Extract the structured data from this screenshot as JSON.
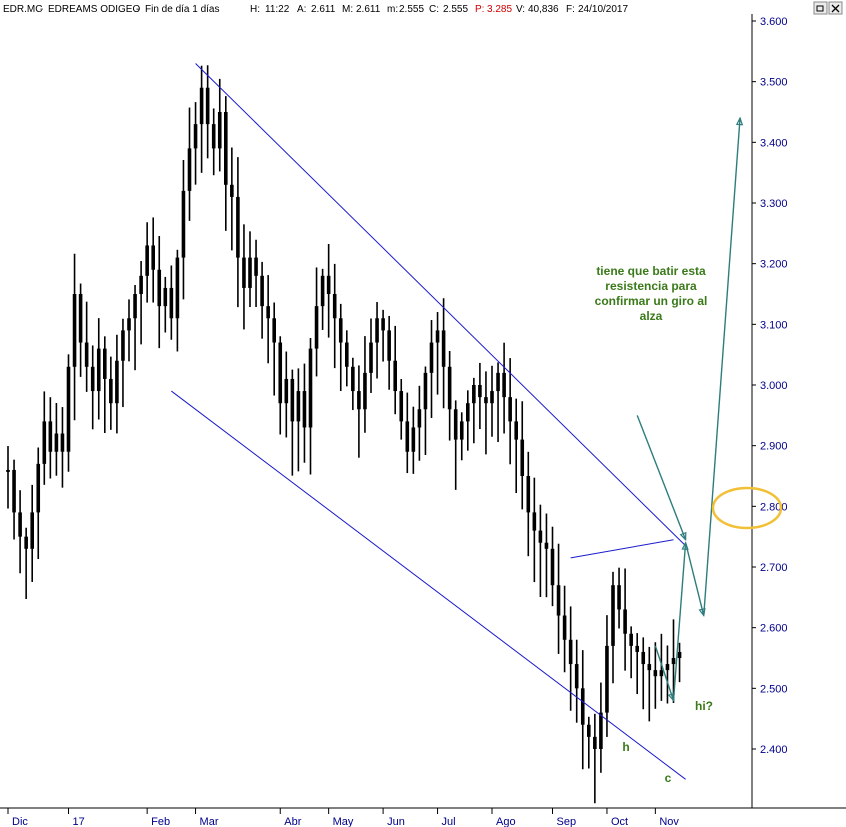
{
  "header": {
    "symbol": "EDR.MC",
    "name": "EDREAMS ODIGEO",
    "period": "Fin de día 1 días",
    "h_label": "H:",
    "h_value": "11:22",
    "a_label": "A:",
    "a_value": "2.611",
    "m_label": "M:",
    "m_value": "2.611",
    "mn_label": "m:",
    "mn_value": "2.555",
    "c_label": "C:",
    "c_value": "2.555",
    "p_label": "P:",
    "p_value": "3.285",
    "v_label": "V:",
    "v_value": "40,836",
    "f_label": "F:",
    "f_value": "24/10/2017"
  },
  "window_controls": {
    "restore": "restore-icon",
    "close": "close-icon"
  },
  "colors": {
    "price": "#000000",
    "axis_text": "#00008b",
    "channel": "#1a1acd",
    "arrows": "#2e7d7d",
    "annotation": "#3a7a1a",
    "ellipse": "#f2c037",
    "p_value": "#d00000"
  },
  "chart_data": {
    "type": "line",
    "title": "EDR.MC - EDREAMS ODIGEO",
    "ylim": [
      2.34,
      3.62
    ],
    "y_ticks": [
      "3.600",
      "3.500",
      "3.400",
      "3.300",
      "3.200",
      "3.100",
      "3.000",
      "2.900",
      "2.800",
      "2.700",
      "2.600",
      "2.500",
      "2.400"
    ],
    "y_tick_values": [
      3.6,
      3.5,
      3.4,
      3.3,
      3.2,
      3.1,
      3.0,
      2.9,
      2.8,
      2.7,
      2.6,
      2.5,
      2.4
    ],
    "x_ticks": [
      "Dic",
      "17",
      "Feb",
      "Mar",
      "Abr",
      "May",
      "Jun",
      "Jul",
      "Ago",
      "Sep",
      "Oct",
      "Nov"
    ],
    "x_tick_index": [
      0,
      10,
      23,
      31,
      45,
      53,
      62,
      71,
      80,
      90,
      99,
      107
    ],
    "n_bars": 112,
    "series": [
      {
        "values": [
          2.85,
          2.78,
          2.74,
          2.72,
          2.78,
          2.86,
          2.93,
          2.88,
          2.91,
          2.88,
          3.02,
          3.14,
          3.06,
          3.02,
          2.98,
          3.05,
          3.0,
          2.96,
          3.03,
          3.08,
          3.1,
          3.14,
          3.17,
          3.22,
          3.18,
          3.12,
          3.15,
          3.1,
          3.2,
          3.31,
          3.38,
          3.42,
          3.48,
          3.42,
          3.38,
          3.44,
          3.32,
          3.3,
          3.2,
          3.15,
          3.2,
          3.17,
          3.12,
          3.1,
          3.06,
          2.96,
          3.0,
          2.93,
          2.98,
          2.92,
          3.05,
          3.12,
          3.17,
          3.14,
          3.1,
          3.06,
          3.02,
          2.98,
          2.95,
          3.01,
          3.06,
          3.1,
          3.08,
          3.03,
          2.98,
          2.93,
          2.88,
          2.92,
          2.95,
          3.01,
          3.06,
          3.08,
          3.02,
          2.95,
          2.9,
          2.93,
          2.96,
          2.99,
          2.97,
          2.96,
          2.98,
          3.01,
          2.97,
          2.93,
          2.9,
          2.84,
          2.78,
          2.75,
          2.73,
          2.72,
          2.66,
          2.61,
          2.57,
          2.53,
          2.49,
          2.43,
          2.41,
          2.39,
          2.45,
          2.56,
          2.66,
          2.62,
          2.58,
          2.56,
          2.55,
          2.53,
          2.52,
          2.51,
          2.52,
          2.53,
          2.54,
          2.55
        ]
      }
    ],
    "annotations": {
      "note": "tiene que batir esta resistencia para confirmar un giro al alza",
      "note_lines": [
        "tiene que batir esta",
        "resistencia para",
        "confirmar un giro al",
        "alza"
      ],
      "h": "h",
      "c": "c",
      "hi": "hi?"
    },
    "trendlines": [
      {
        "name": "channel-upper",
        "from": [
          31,
          3.53
        ],
        "to": [
          112,
          2.735
        ]
      },
      {
        "name": "channel-lower",
        "from": [
          27,
          2.99
        ],
        "to": [
          112,
          2.35
        ]
      },
      {
        "name": "resistance",
        "from": [
          93,
          2.715
        ],
        "to": [
          110,
          2.745
        ]
      }
    ],
    "projection": [
      [
        107,
        2.57
      ],
      [
        110,
        2.48
      ],
      [
        112,
        2.74
      ],
      [
        115,
        2.62
      ],
      [
        121,
        3.44
      ]
    ],
    "projection_b": [
      [
        104,
        2.95
      ],
      [
        112,
        2.745
      ]
    ],
    "grid": false,
    "legend": "none"
  }
}
